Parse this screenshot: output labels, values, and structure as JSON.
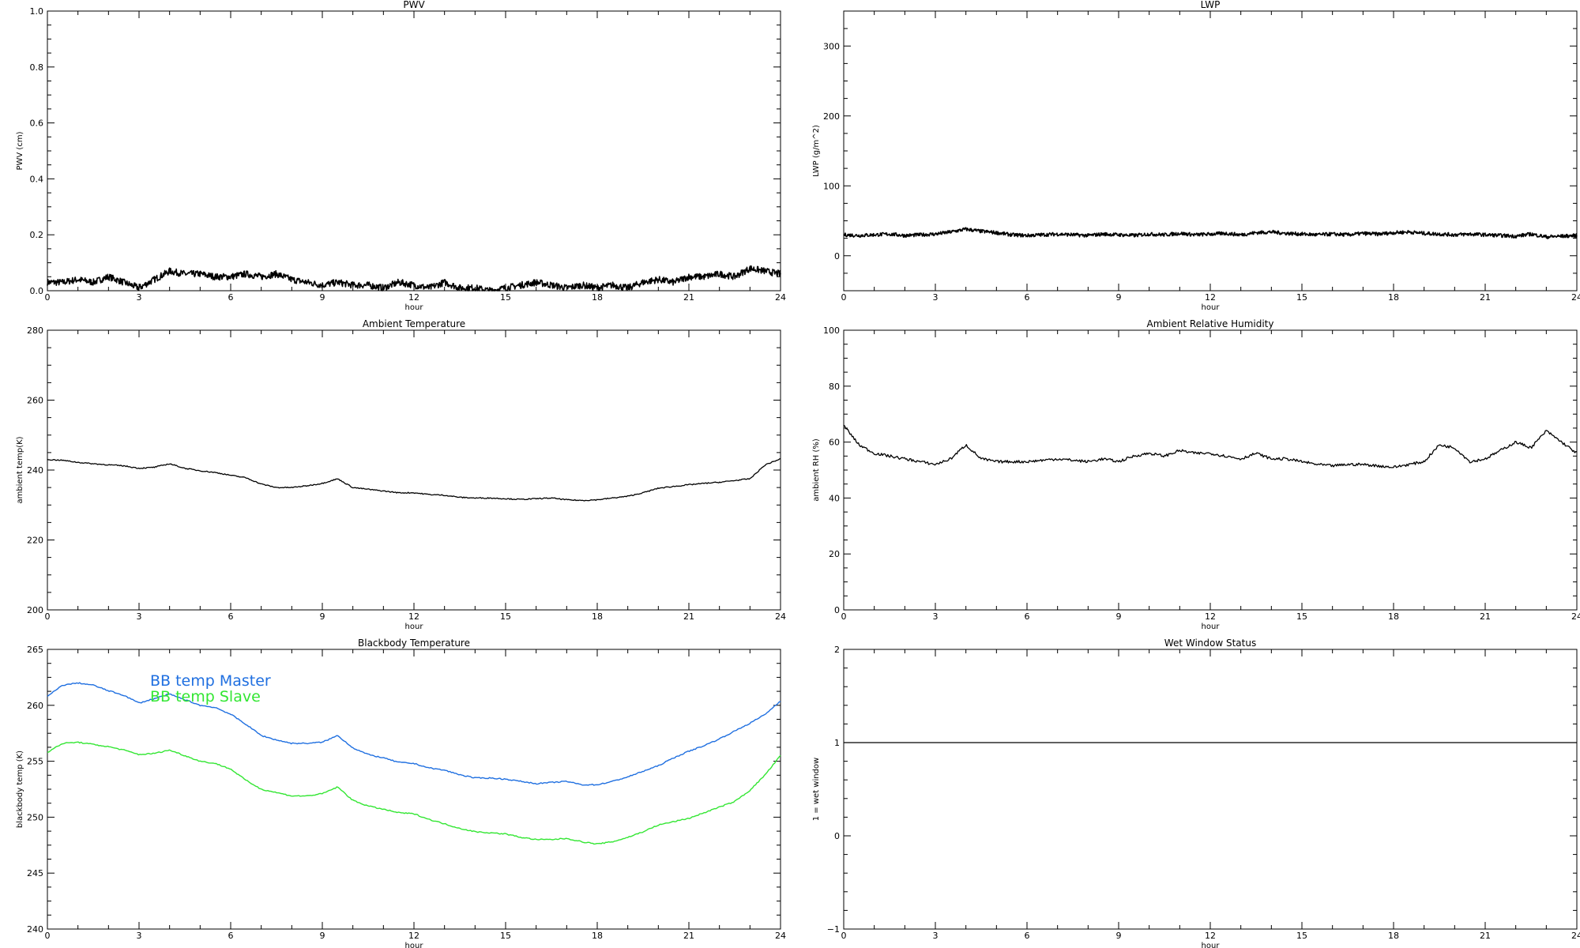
{
  "chart_data": [
    {
      "type": "line",
      "title": "PWV",
      "xlabel": "hour",
      "ylabel": "PWV (cm)",
      "xlim": [
        0,
        24
      ],
      "ylim": [
        0,
        1.0
      ],
      "xticks": [
        0,
        3,
        6,
        9,
        12,
        15,
        18,
        21,
        24
      ],
      "yticks": [
        "0.0",
        "0.2",
        "0.4",
        "0.6",
        "0.8",
        "1.0"
      ],
      "series": [
        {
          "color": "#000000",
          "x": [
            0,
            0.5,
            1,
            1.5,
            2,
            2.5,
            3,
            3.5,
            4,
            4.5,
            5,
            5.5,
            6,
            6.5,
            7,
            7.5,
            8,
            8.5,
            9,
            9.5,
            10,
            10.5,
            11,
            11.5,
            12,
            12.5,
            13,
            13.5,
            14,
            14.5,
            15,
            15.5,
            16,
            16.5,
            17,
            17.5,
            18,
            18.5,
            19,
            19.5,
            20,
            20.5,
            21,
            21.5,
            22,
            22.5,
            23,
            23.5,
            24
          ],
          "y": [
            0.03,
            0.03,
            0.04,
            0.03,
            0.05,
            0.03,
            0.01,
            0.04,
            0.07,
            0.06,
            0.06,
            0.05,
            0.05,
            0.06,
            0.05,
            0.06,
            0.04,
            0.03,
            0.02,
            0.03,
            0.02,
            0.02,
            0.01,
            0.03,
            0.02,
            0.01,
            0.03,
            0.01,
            0.01,
            0.0,
            0.01,
            0.02,
            0.03,
            0.02,
            0.01,
            0.02,
            0.01,
            0.02,
            0.01,
            0.03,
            0.04,
            0.03,
            0.05,
            0.05,
            0.06,
            0.05,
            0.08,
            0.07,
            0.06
          ]
        }
      ]
    },
    {
      "type": "line",
      "title": "LWP",
      "xlabel": "hour",
      "ylabel": "LWP (g/m^2)",
      "xlim": [
        0,
        24
      ],
      "ylim": [
        -50,
        350
      ],
      "xticks": [
        0,
        3,
        6,
        9,
        12,
        15,
        18,
        21,
        24
      ],
      "yticks": [
        "0",
        "100",
        "200",
        "300"
      ],
      "series": [
        {
          "color": "#000000",
          "x": [
            0,
            0.5,
            1,
            1.5,
            2,
            2.5,
            3,
            3.5,
            4,
            4.5,
            5,
            5.5,
            6,
            6.5,
            7,
            7.5,
            8,
            8.5,
            9,
            9.5,
            10,
            10.5,
            11,
            11.5,
            12,
            12.5,
            13,
            13.5,
            14,
            14.5,
            15,
            15.5,
            16,
            16.5,
            17,
            17.5,
            18,
            18.5,
            19,
            19.5,
            20,
            20.5,
            21,
            21.5,
            22,
            22.5,
            23,
            23.5,
            24
          ],
          "y": [
            30,
            29,
            30,
            31,
            29,
            30,
            31,
            34,
            38,
            35,
            33,
            30,
            29,
            30,
            31,
            30,
            29,
            31,
            30,
            29,
            31,
            30,
            32,
            30,
            31,
            32,
            30,
            33,
            34,
            32,
            31,
            30,
            31,
            30,
            32,
            31,
            33,
            34,
            32,
            31,
            30,
            31,
            30,
            29,
            28,
            31,
            27,
            28,
            29
          ]
        }
      ]
    },
    {
      "type": "line",
      "title": "Ambient Temperature",
      "xlabel": "hour",
      "ylabel": "ambient temp(K)",
      "xlim": [
        0,
        24
      ],
      "ylim": [
        200,
        280
      ],
      "xticks": [
        0,
        3,
        6,
        9,
        12,
        15,
        18,
        21,
        24
      ],
      "yticks": [
        "200",
        "220",
        "240",
        "260",
        "280"
      ],
      "series": [
        {
          "color": "#000000",
          "x": [
            0,
            0.5,
            1,
            1.5,
            2,
            2.5,
            3,
            3.5,
            4,
            4.5,
            5,
            5.5,
            6,
            6.5,
            7,
            7.5,
            8,
            8.5,
            9,
            9.5,
            10,
            10.5,
            11,
            11.5,
            12,
            12.5,
            13,
            13.5,
            14,
            14.5,
            15,
            15.5,
            16,
            16.5,
            17,
            17.5,
            18,
            18.5,
            19,
            19.5,
            20,
            20.5,
            21,
            21.5,
            22,
            22.5,
            23,
            23.5,
            24
          ],
          "y": [
            243,
            242.8,
            242.2,
            241.8,
            241.5,
            241.2,
            240.5,
            240.8,
            241.8,
            240.5,
            239.8,
            239.3,
            238.5,
            237.8,
            236.0,
            235.0,
            235.0,
            235.5,
            236.2,
            237.5,
            235.0,
            234.5,
            234.0,
            233.5,
            233.5,
            233.0,
            232.8,
            232.2,
            232.0,
            232.0,
            231.8,
            231.6,
            231.8,
            232.0,
            231.5,
            231.3,
            231.5,
            232.0,
            232.5,
            233.5,
            234.8,
            235.3,
            235.8,
            236.2,
            236.5,
            237.0,
            237.5,
            241.5,
            243.2
          ]
        }
      ]
    },
    {
      "type": "line",
      "title": "Ambient Relative Humidity",
      "xlabel": "hour",
      "ylabel": "ambient RH (%)",
      "xlim": [
        0,
        24
      ],
      "ylim": [
        0,
        100
      ],
      "xticks": [
        0,
        3,
        6,
        9,
        12,
        15,
        18,
        21,
        24
      ],
      "yticks": [
        "0",
        "20",
        "40",
        "60",
        "80",
        "100"
      ],
      "series": [
        {
          "color": "#000000",
          "x": [
            0,
            0.5,
            1,
            1.5,
            2,
            2.5,
            3,
            3.5,
            4,
            4.5,
            5,
            5.5,
            6,
            6.5,
            7,
            7.5,
            8,
            8.5,
            9,
            9.5,
            10,
            10.5,
            11,
            11.5,
            12,
            12.5,
            13,
            13.5,
            14,
            14.5,
            15,
            15.5,
            16,
            16.5,
            17,
            17.5,
            18,
            18.5,
            19,
            19.5,
            20,
            20.5,
            21,
            21.5,
            22,
            22.5,
            23,
            23.5,
            24
          ],
          "y": [
            66,
            59,
            56,
            55,
            54,
            53,
            52,
            54,
            59,
            54,
            53,
            53,
            53,
            53.5,
            54,
            53.5,
            53,
            54,
            53,
            55,
            56,
            55,
            57,
            56,
            56,
            55,
            54,
            56,
            54,
            54,
            53,
            52,
            51.5,
            52,
            52,
            51.5,
            51,
            52,
            53,
            59,
            58,
            53,
            54,
            57,
            60,
            58,
            64,
            60,
            56
          ]
        }
      ]
    },
    {
      "type": "line",
      "title": "Blackbody Temperature",
      "xlabel": "hour",
      "ylabel": "blackbody temp (K)",
      "xlim": [
        0,
        24
      ],
      "ylim": [
        240,
        265
      ],
      "xticks": [
        0,
        3,
        6,
        9,
        12,
        15,
        18,
        21,
        24
      ],
      "yticks": [
        "240",
        "245",
        "250",
        "255",
        "260",
        "265"
      ],
      "legend": [
        "BB temp Master",
        "BB temp Slave"
      ],
      "series": [
        {
          "name": "BB temp Master",
          "color": "#1f6fe0",
          "x": [
            0,
            0.5,
            1,
            1.5,
            2,
            2.5,
            3,
            3.5,
            4,
            4.5,
            5,
            5.5,
            6,
            6.5,
            7,
            7.5,
            8,
            8.5,
            9,
            9.5,
            10,
            10.5,
            11,
            11.5,
            12,
            12.5,
            13,
            13.5,
            14,
            14.5,
            15,
            15.5,
            16,
            16.5,
            17,
            17.5,
            18,
            18.5,
            19,
            19.5,
            20,
            20.5,
            21,
            21.5,
            22,
            22.5,
            23,
            23.5,
            24
          ],
          "y": [
            260.8,
            261.8,
            262.0,
            261.8,
            261.3,
            260.9,
            260.2,
            260.6,
            261.0,
            260.5,
            260.0,
            259.8,
            259.2,
            258.3,
            257.3,
            256.9,
            256.6,
            256.6,
            256.7,
            257.3,
            256.2,
            255.6,
            255.3,
            254.9,
            254.8,
            254.4,
            254.2,
            253.8,
            253.5,
            253.5,
            253.4,
            253.2,
            253.0,
            253.1,
            253.2,
            252.9,
            252.9,
            253.2,
            253.6,
            254.1,
            254.6,
            255.3,
            255.9,
            256.4,
            257.0,
            257.7,
            258.4,
            259.2,
            260.4
          ]
        },
        {
          "name": "BB temp Slave",
          "color": "#33e633",
          "x": [
            0,
            0.5,
            1,
            1.5,
            2,
            2.5,
            3,
            3.5,
            4,
            4.5,
            5,
            5.5,
            6,
            6.5,
            7,
            7.5,
            8,
            8.5,
            9,
            9.5,
            10,
            10.5,
            11,
            11.5,
            12,
            12.5,
            13,
            13.5,
            14,
            14.5,
            15,
            15.5,
            16,
            16.5,
            17,
            17.5,
            18,
            18.5,
            19,
            19.5,
            20,
            20.5,
            21,
            21.5,
            22,
            22.5,
            23,
            23.5,
            24
          ],
          "y": [
            255.8,
            256.6,
            256.7,
            256.5,
            256.3,
            256.0,
            255.6,
            255.7,
            256.0,
            255.5,
            255.0,
            254.8,
            254.3,
            253.3,
            252.5,
            252.2,
            251.9,
            251.9,
            252.1,
            252.7,
            251.5,
            251.0,
            250.7,
            250.4,
            250.3,
            249.8,
            249.4,
            249.0,
            248.7,
            248.6,
            248.5,
            248.2,
            248.0,
            248.0,
            248.1,
            247.8,
            247.6,
            247.8,
            248.2,
            248.7,
            249.3,
            249.6,
            249.9,
            250.4,
            250.9,
            251.4,
            252.4,
            253.8,
            255.5
          ]
        }
      ]
    },
    {
      "type": "line",
      "title": "Wet Window Status",
      "xlabel": "hour",
      "ylabel": "1 = wet window",
      "xlim": [
        0,
        24
      ],
      "ylim": [
        -1,
        2
      ],
      "xticks": [
        0,
        3,
        6,
        9,
        12,
        15,
        18,
        21,
        24
      ],
      "yticks": [
        "−1",
        "0",
        "1",
        "2"
      ],
      "series": [
        {
          "color": "#000000",
          "x": [
            0,
            24
          ],
          "y": [
            1,
            1
          ]
        }
      ]
    }
  ]
}
